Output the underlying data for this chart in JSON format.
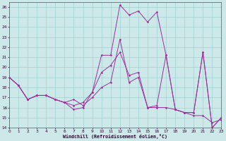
{
  "xlabel": "Windchill (Refroidissement éolien,°C)",
  "bg_color": "#cce8e8",
  "grid_color": "#99cccc",
  "line_color": "#993399",
  "xlim": [
    0,
    23
  ],
  "ylim": [
    14,
    26.5
  ],
  "xticks": [
    0,
    1,
    2,
    3,
    4,
    5,
    6,
    7,
    8,
    9,
    10,
    11,
    12,
    13,
    14,
    15,
    16,
    17,
    18,
    19,
    20,
    21,
    22,
    23
  ],
  "yticks": [
    14,
    15,
    16,
    17,
    18,
    19,
    20,
    21,
    22,
    23,
    24,
    25,
    26
  ],
  "lines": [
    {
      "x": [
        0,
        1,
        2,
        3,
        4,
        5,
        6,
        7,
        8,
        9,
        10,
        11,
        12,
        13,
        14,
        15,
        16,
        17,
        18,
        19,
        20,
        21,
        22,
        23
      ],
      "y": [
        19,
        18.2,
        16.8,
        17.2,
        17.2,
        16.8,
        16.5,
        15.8,
        16.0,
        17.5,
        21.2,
        21.2,
        26.2,
        25.2,
        25.6,
        24.5,
        25.5,
        21.2,
        15.8,
        15.5,
        15.5,
        21.5,
        14.0,
        15.0
      ]
    },
    {
      "x": [
        0,
        1,
        2,
        3,
        4,
        5,
        6,
        7,
        8,
        9,
        10,
        11,
        12,
        13,
        14,
        15,
        16,
        17,
        18,
        19,
        20,
        21,
        22,
        23
      ],
      "y": [
        19,
        18.2,
        16.8,
        17.2,
        17.2,
        16.8,
        16.5,
        16.2,
        16.5,
        17.5,
        19.5,
        20.2,
        21.5,
        19.2,
        19.5,
        16.0,
        16.2,
        21.2,
        15.8,
        15.5,
        15.5,
        21.5,
        14.0,
        15.0
      ]
    },
    {
      "x": [
        0,
        1,
        2,
        3,
        4,
        5,
        6,
        7,
        8,
        9,
        10,
        11,
        12,
        13,
        14,
        15,
        16,
        17,
        18,
        19,
        20,
        21,
        22,
        23
      ],
      "y": [
        19,
        18.2,
        16.8,
        17.2,
        17.2,
        16.8,
        16.5,
        16.8,
        16.2,
        17.0,
        18.0,
        18.5,
        22.8,
        18.5,
        19.0,
        16.0,
        16.0,
        16.0,
        15.8,
        15.5,
        15.2,
        15.2,
        14.5,
        14.8
      ]
    }
  ]
}
